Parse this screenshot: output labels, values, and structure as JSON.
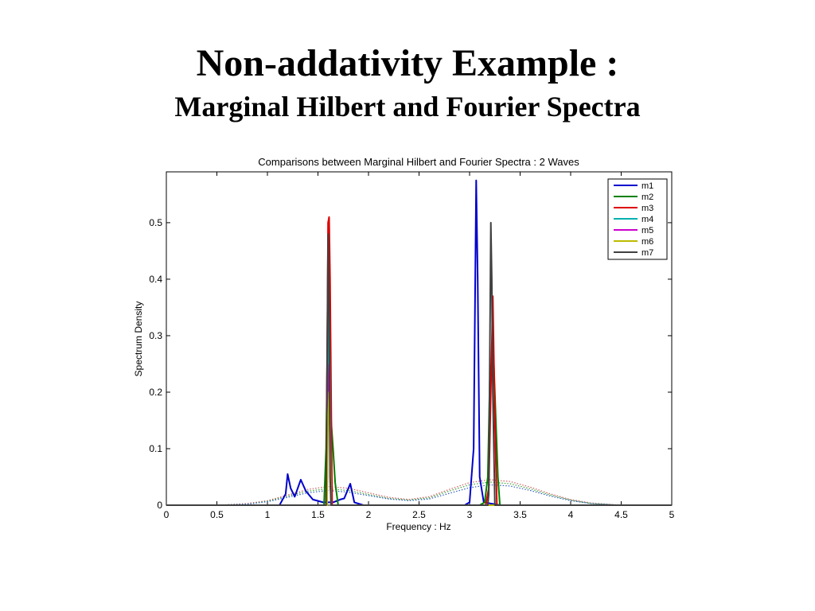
{
  "slide": {
    "title": "Non-addativity Example :",
    "subtitle": "Marginal Hilbert and Fourier Spectra"
  },
  "chart_data": {
    "type": "line",
    "title": "Comparisons between Marginal Hilbert and Fourier Spectra : 2 Waves",
    "xlabel": "Frequency : Hz",
    "ylabel": "Spectrum Density",
    "xlim": [
      0,
      5
    ],
    "ylim": [
      0,
      0.59
    ],
    "xticks": [
      0,
      0.5,
      1,
      1.5,
      2,
      2.5,
      3,
      3.5,
      4,
      4.5,
      5
    ],
    "xtick_labels": [
      "0",
      "0.5",
      "1",
      "1.5",
      "2",
      "2.5",
      "3",
      "3.5",
      "4",
      "4.5",
      "5"
    ],
    "yticks": [
      0,
      0.1,
      0.2,
      0.3,
      0.4,
      0.5
    ],
    "ytick_labels": [
      "0",
      "0.1",
      "0.2",
      "0.3",
      "0.4",
      "0.5"
    ],
    "grid": false,
    "legend_position": "top-right",
    "series": [
      {
        "name": "m1",
        "color": "#0000cc",
        "style": "solid",
        "x": [
          0,
          1.12,
          1.18,
          1.2,
          1.23,
          1.27,
          1.3,
          1.33,
          1.38,
          1.45,
          1.55,
          1.65,
          1.72,
          1.76,
          1.79,
          1.82,
          1.86,
          1.95,
          2.5,
          2.95,
          3.0,
          3.04,
          3.065,
          3.08,
          3.1,
          3.14,
          3.3,
          5
        ],
        "y": [
          0,
          0,
          0.02,
          0.055,
          0.03,
          0.015,
          0.03,
          0.045,
          0.025,
          0.01,
          0.005,
          0.005,
          0.01,
          0.012,
          0.025,
          0.038,
          0.005,
          0,
          0,
          0,
          0.005,
          0.1,
          0.575,
          0.4,
          0.05,
          0.005,
          0,
          0
        ]
      },
      {
        "name": "m2",
        "color": "#008000",
        "style": "solid",
        "x": [
          0,
          1.56,
          1.58,
          1.6,
          1.61,
          1.62,
          1.63,
          1.65,
          1.67,
          1.7,
          3.1,
          3.15,
          3.18,
          3.2,
          3.22,
          3.24,
          3.26,
          3.28,
          3.3,
          5
        ],
        "y": [
          0,
          0,
          0.1,
          0.38,
          0.45,
          0.3,
          0.15,
          0.1,
          0.04,
          0,
          0,
          0.005,
          0.05,
          0.22,
          0.26,
          0.25,
          0.15,
          0.05,
          0,
          0
        ]
      },
      {
        "name": "m3",
        "color": "#dd0000",
        "style": "solid",
        "x": [
          0,
          1.58,
          1.6,
          1.61,
          1.62,
          1.64,
          3.16,
          3.19,
          3.21,
          3.23,
          3.25,
          3.27,
          5
        ],
        "y": [
          0,
          0,
          0.5,
          0.51,
          0.4,
          0,
          0,
          0.03,
          0.2,
          0.37,
          0.15,
          0,
          0
        ]
      },
      {
        "name": "m4",
        "color": "#00b0b0",
        "style": "solid",
        "x": [
          0,
          1.59,
          1.6,
          1.61,
          1.63,
          5
        ],
        "y": [
          0,
          0,
          0.3,
          0.35,
          0,
          0
        ]
      },
      {
        "name": "m5",
        "color": "#cc00cc",
        "style": "solid",
        "x": [
          0,
          1.59,
          1.6,
          1.61,
          1.63,
          5
        ],
        "y": [
          0,
          0,
          0.2,
          0.25,
          0,
          0
        ]
      },
      {
        "name": "m6",
        "color": "#bbbb00",
        "style": "solid",
        "x": [
          0,
          1.59,
          1.6,
          1.61,
          1.63,
          5
        ],
        "y": [
          0,
          0,
          0.15,
          0.2,
          0,
          0
        ]
      },
      {
        "name": "m7",
        "color": "#404040",
        "style": "solid",
        "x": [
          0,
          1.57,
          1.58,
          1.6,
          1.61,
          1.62,
          1.63,
          3.18,
          3.19,
          3.21,
          3.22,
          3.23,
          3.25,
          5
        ],
        "y": [
          0,
          0,
          0,
          0.48,
          0.35,
          0.05,
          0,
          0,
          0.02,
          0.5,
          0.4,
          0.2,
          0,
          0
        ]
      },
      {
        "name": "",
        "color": "#d06060",
        "style": "dotted",
        "x": [
          0.5,
          0.8,
          1.0,
          1.2,
          1.4,
          1.6,
          1.8,
          2.0,
          2.2,
          2.4,
          2.6,
          2.8,
          3.0,
          3.2,
          3.4,
          3.6,
          3.8,
          4.0,
          4.2,
          4.5
        ],
        "y": [
          0,
          0.003,
          0.008,
          0.018,
          0.028,
          0.033,
          0.03,
          0.022,
          0.014,
          0.01,
          0.015,
          0.028,
          0.04,
          0.045,
          0.042,
          0.032,
          0.02,
          0.01,
          0.004,
          0
        ]
      },
      {
        "name": "",
        "color": "#40a040",
        "style": "dotted",
        "x": [
          0.5,
          0.8,
          1.0,
          1.2,
          1.4,
          1.6,
          1.8,
          2.0,
          2.2,
          2.4,
          2.6,
          2.8,
          3.0,
          3.2,
          3.4,
          3.6,
          3.8,
          4.0,
          4.2,
          4.5
        ],
        "y": [
          0,
          0.002,
          0.007,
          0.016,
          0.025,
          0.029,
          0.026,
          0.019,
          0.012,
          0.009,
          0.013,
          0.025,
          0.036,
          0.041,
          0.038,
          0.029,
          0.018,
          0.009,
          0.003,
          0
        ]
      },
      {
        "name": "",
        "color": "#3060c0",
        "style": "dotted",
        "x": [
          0.5,
          0.8,
          1.0,
          1.2,
          1.4,
          1.6,
          1.8,
          2.0,
          2.2,
          2.4,
          2.6,
          2.8,
          3.0,
          3.2,
          3.4,
          3.6,
          3.8,
          4.0,
          4.2,
          4.5
        ],
        "y": [
          0,
          0.002,
          0.006,
          0.014,
          0.022,
          0.026,
          0.023,
          0.017,
          0.011,
          0.008,
          0.011,
          0.021,
          0.031,
          0.036,
          0.034,
          0.026,
          0.016,
          0.008,
          0.003,
          0
        ]
      }
    ]
  }
}
